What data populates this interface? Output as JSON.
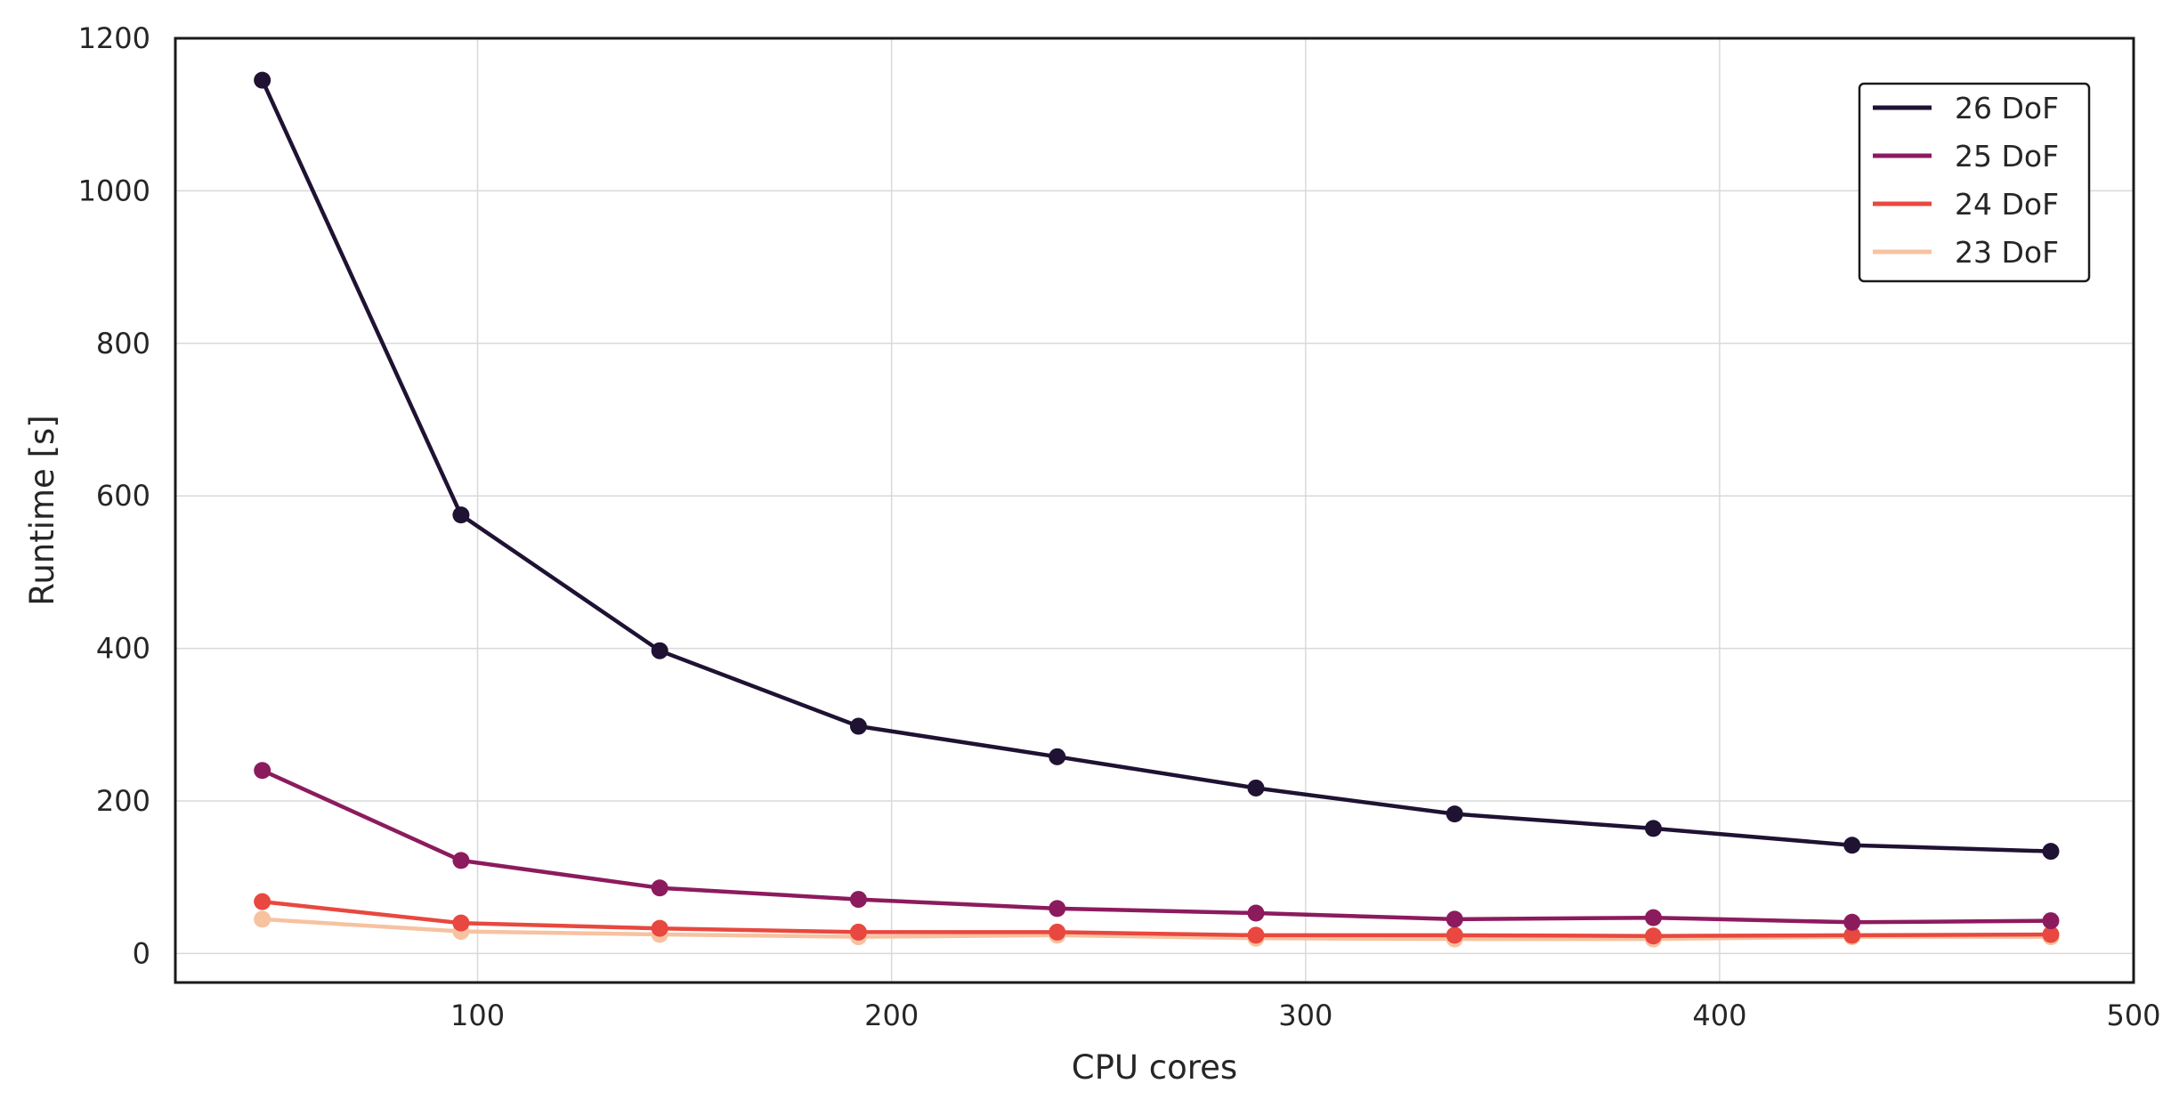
{
  "chart_data": {
    "type": "line",
    "title": "",
    "xlabel": "CPU cores",
    "ylabel": "Runtime [s]",
    "xlim": [
      27,
      500
    ],
    "ylim": [
      -38,
      1200
    ],
    "xticks": [
      100,
      200,
      300,
      400,
      500
    ],
    "yticks": [
      0,
      200,
      400,
      600,
      800,
      1000,
      1200
    ],
    "grid": true,
    "legend_position": "top-right",
    "x": [
      48,
      96,
      144,
      192,
      240,
      288,
      336,
      384,
      432,
      480
    ],
    "series": [
      {
        "name": "26 DoF",
        "color": "#1f1233",
        "values": [
          1145,
          575,
          397,
          298,
          258,
          217,
          183,
          164,
          142,
          134
        ]
      },
      {
        "name": "25 DoF",
        "color": "#8c1b5e",
        "values": [
          240,
          122,
          86,
          71,
          59,
          53,
          45,
          47,
          41,
          43
        ]
      },
      {
        "name": "24 DoF",
        "color": "#e8483f",
        "values": [
          68,
          40,
          33,
          28,
          28,
          24,
          24,
          23,
          24,
          25
        ]
      },
      {
        "name": "23 DoF",
        "color": "#f7c2a0",
        "values": [
          45,
          29,
          25,
          22,
          24,
          20,
          19,
          19,
          22,
          22
        ]
      }
    ]
  }
}
